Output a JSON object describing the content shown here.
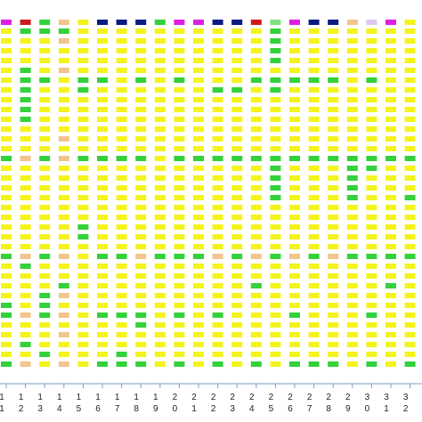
{
  "chart_data": {
    "type": "grid",
    "colors": {
      "y": "#f4f41c",
      "g": "#33d13a",
      "o": "#f2c48e",
      "m": "#e01ee0",
      "r": "#cc1a1a",
      "n": "#0a1a80",
      "l": "#7fe07f",
      "v": "#dcc8f0",
      "p": "#f0a8a8"
    },
    "categories": [
      "11",
      "12",
      "13",
      "14",
      "15",
      "16",
      "17",
      "18",
      "19",
      "20",
      "21",
      "22",
      "23",
      "24",
      "25",
      "26",
      "27",
      "28",
      "29",
      "30",
      "31",
      "32"
    ],
    "header": [
      "m",
      "r",
      "g",
      "o",
      "y",
      "n",
      "n",
      "n",
      "g",
      "m",
      "m",
      "n",
      "n",
      "r",
      "l",
      "m",
      "n",
      "n",
      "o",
      "v",
      "m",
      "y"
    ],
    "cells": [
      "yyyyyyyyyyyyygyyyyyyyyygyyyyggyyyyg",
      "gyyyggggggyyyoyyyyyyyyyogyyyyoyygyo",
      "gyyyygyyyyyyygyyyyyyyyygyyygggyyygy",
      "goyyoyyyyyyoyoyyyyyyyyyoyygoyoyoyyo",
      "yyyyyggyyyyyygyyyyyyggyyyyyyyyyyyyy",
      "yyyyygyyyyyyygyyyyyyyyygyyyyygyyyyg",
      "yyyyyyyyyyyyygyyyyyyyyygyyyyygyyygg",
      "yyyyygyyyyyyygyyyyyyyyyoyyyyyggyyyg",
      "yyyyyyyyyyyyyyyyyyyyyyygyyyyyyyyyyy",
      "yyyyygyyyyyyygyyyyyyyyygyyyyygyyyyg",
      "yyyyyyyyyyyyygyyyyyyyyygyyyyyyyyyyy",
      "yyyyyygyyyyyygyyyyyyyyyoyyyyygyyyyg",
      "yyyyyygyyyyyygyyyyyyyyygyyyyyyyyyyy",
      "yyyyygyyyyyyygyyyyyyyyyoyygyyyyyyyg",
      "ggggyggyyyyyygggggyyyyygyyyyyyyyyyy",
      "yyyyygyyyyyyygyyyyyyyyyoyyyyygyyyyg",
      "yyyyygyyyyyyygyyyyyyyyygyyyyyyyyyyg",
      "yyyyygyyyyyyygyyyyyyyyyoyyyyyyyyyyg",
      "yyyyyyyyyyyyygggggyyyyygyyyyyyyyyyy",
      "yyyyygyyyyyyyggyyyyyyyygyyyyygyyyyg",
      "yyyyyyyyyyyyygyyyyyyyyygyygyyyyyyyy",
      "yyyyyyyyyyyyygyyygyyyyygyyyyyyyyyyg"
    ]
  }
}
